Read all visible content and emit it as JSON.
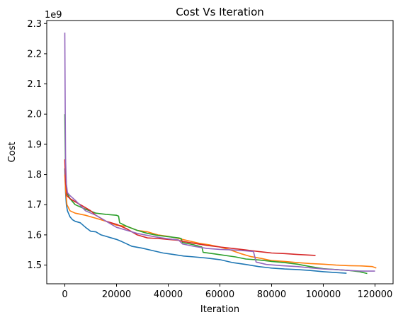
{
  "chart_data": {
    "type": "line",
    "title": "Cost Vs Iteration",
    "xlabel": "Iteration",
    "ylabel": "Cost",
    "y_offset_text": "1e9",
    "xlim": [
      -7000,
      127000
    ],
    "ylim": [
      1.438,
      2.31
    ],
    "xticks": [
      0,
      20000,
      40000,
      60000,
      80000,
      100000,
      120000
    ],
    "yticks": [
      1.5,
      1.6,
      1.7,
      1.8,
      1.9,
      2.0,
      2.1,
      2.2,
      2.3
    ],
    "xtick_labels": [
      "0",
      "20000",
      "40000",
      "60000",
      "80000",
      "100000",
      "120000"
    ],
    "ytick_labels": [
      "1.5",
      "1.6",
      "1.7",
      "1.8",
      "1.9",
      "2.0",
      "2.1",
      "2.2",
      "2.3"
    ],
    "grid": false,
    "legend": "none",
    "series": [
      {
        "color": "#1f77b4",
        "points": [
          [
            0,
            1.82
          ],
          [
            300,
            1.74
          ],
          [
            600,
            1.7
          ],
          [
            1000,
            1.68
          ],
          [
            2000,
            1.66
          ],
          [
            3000,
            1.65
          ],
          [
            4000,
            1.645
          ],
          [
            6000,
            1.64
          ],
          [
            8000,
            1.625
          ],
          [
            10000,
            1.612
          ],
          [
            12000,
            1.61
          ],
          [
            14000,
            1.6
          ],
          [
            16000,
            1.595
          ],
          [
            18000,
            1.59
          ],
          [
            20000,
            1.585
          ],
          [
            22000,
            1.578
          ],
          [
            24000,
            1.57
          ],
          [
            26000,
            1.562
          ],
          [
            30000,
            1.556
          ],
          [
            34000,
            1.548
          ],
          [
            38000,
            1.54
          ],
          [
            42000,
            1.535
          ],
          [
            46000,
            1.53
          ],
          [
            50000,
            1.527
          ],
          [
            55000,
            1.523
          ],
          [
            60000,
            1.518
          ],
          [
            65000,
            1.508
          ],
          [
            70000,
            1.502
          ],
          [
            75000,
            1.495
          ],
          [
            80000,
            1.49
          ],
          [
            85000,
            1.487
          ],
          [
            90000,
            1.485
          ],
          [
            95000,
            1.482
          ],
          [
            100000,
            1.478
          ],
          [
            105000,
            1.475
          ],
          [
            109000,
            1.473
          ]
        ]
      },
      {
        "color": "#ff7f0e",
        "points": [
          [
            0,
            1.8
          ],
          [
            300,
            1.75
          ],
          [
            800,
            1.7
          ],
          [
            2000,
            1.68
          ],
          [
            4000,
            1.672
          ],
          [
            8000,
            1.665
          ],
          [
            12000,
            1.655
          ],
          [
            16000,
            1.645
          ],
          [
            20000,
            1.632
          ],
          [
            24000,
            1.628
          ],
          [
            28000,
            1.615
          ],
          [
            32000,
            1.61
          ],
          [
            36000,
            1.6
          ],
          [
            40000,
            1.595
          ],
          [
            44000,
            1.588
          ],
          [
            48000,
            1.58
          ],
          [
            52000,
            1.572
          ],
          [
            56000,
            1.567
          ],
          [
            60000,
            1.56
          ],
          [
            64000,
            1.55
          ],
          [
            68000,
            1.538
          ],
          [
            72000,
            1.528
          ],
          [
            76000,
            1.522
          ],
          [
            80000,
            1.515
          ],
          [
            85000,
            1.512
          ],
          [
            90000,
            1.508
          ],
          [
            95000,
            1.505
          ],
          [
            100000,
            1.503
          ],
          [
            105000,
            1.5
          ],
          [
            110000,
            1.498
          ],
          [
            115000,
            1.497
          ],
          [
            119000,
            1.495
          ],
          [
            120500,
            1.49
          ]
        ]
      },
      {
        "color": "#2ca02c",
        "points": [
          [
            0,
            2.0
          ],
          [
            300,
            1.8
          ],
          [
            800,
            1.74
          ],
          [
            2000,
            1.72
          ],
          [
            4000,
            1.7
          ],
          [
            8000,
            1.685
          ],
          [
            12000,
            1.672
          ],
          [
            16000,
            1.668
          ],
          [
            20000,
            1.665
          ],
          [
            20800,
            1.662
          ],
          [
            21200,
            1.64
          ],
          [
            24000,
            1.628
          ],
          [
            28000,
            1.615
          ],
          [
            32000,
            1.605
          ],
          [
            36000,
            1.598
          ],
          [
            40000,
            1.594
          ],
          [
            44000,
            1.59
          ],
          [
            45000,
            1.588
          ],
          [
            45500,
            1.575
          ],
          [
            50000,
            1.567
          ],
          [
            53000,
            1.56
          ],
          [
            53500,
            1.542
          ],
          [
            58000,
            1.537
          ],
          [
            62000,
            1.532
          ],
          [
            66000,
            1.527
          ],
          [
            70000,
            1.52
          ],
          [
            75000,
            1.517
          ],
          [
            80000,
            1.512
          ],
          [
            85000,
            1.508
          ],
          [
            90000,
            1.503
          ],
          [
            95000,
            1.495
          ],
          [
            100000,
            1.488
          ],
          [
            105000,
            1.485
          ],
          [
            110000,
            1.482
          ],
          [
            114000,
            1.478
          ],
          [
            117000,
            1.472
          ]
        ]
      },
      {
        "color": "#d62728",
        "points": [
          [
            0,
            1.85
          ],
          [
            300,
            1.78
          ],
          [
            800,
            1.73
          ],
          [
            2000,
            1.72
          ],
          [
            4000,
            1.71
          ],
          [
            6000,
            1.7
          ],
          [
            8000,
            1.69
          ],
          [
            10000,
            1.68
          ],
          [
            12000,
            1.665
          ],
          [
            14000,
            1.655
          ],
          [
            16000,
            1.645
          ],
          [
            20000,
            1.635
          ],
          [
            24000,
            1.62
          ],
          [
            28000,
            1.6
          ],
          [
            32000,
            1.59
          ],
          [
            36000,
            1.588
          ],
          [
            40000,
            1.585
          ],
          [
            44000,
            1.582
          ],
          [
            46000,
            1.578
          ],
          [
            50000,
            1.572
          ],
          [
            55000,
            1.565
          ],
          [
            60000,
            1.56
          ],
          [
            65000,
            1.555
          ],
          [
            70000,
            1.55
          ],
          [
            75000,
            1.545
          ],
          [
            80000,
            1.54
          ],
          [
            85000,
            1.538
          ],
          [
            90000,
            1.535
          ],
          [
            97000,
            1.532
          ]
        ]
      },
      {
        "color": "#9467bd",
        "points": [
          [
            0,
            2.27
          ],
          [
            150,
            2.0
          ],
          [
            300,
            1.85
          ],
          [
            600,
            1.77
          ],
          [
            1000,
            1.74
          ],
          [
            2000,
            1.73
          ],
          [
            4000,
            1.715
          ],
          [
            8000,
            1.68
          ],
          [
            12000,
            1.665
          ],
          [
            16000,
            1.645
          ],
          [
            20000,
            1.625
          ],
          [
            24000,
            1.615
          ],
          [
            28000,
            1.605
          ],
          [
            32000,
            1.598
          ],
          [
            36000,
            1.592
          ],
          [
            40000,
            1.587
          ],
          [
            44000,
            1.583
          ],
          [
            45500,
            1.57
          ],
          [
            50000,
            1.562
          ],
          [
            55000,
            1.555
          ],
          [
            60000,
            1.552
          ],
          [
            65000,
            1.55
          ],
          [
            70000,
            1.547
          ],
          [
            73000,
            1.545
          ],
          [
            74000,
            1.51
          ],
          [
            78000,
            1.502
          ],
          [
            84000,
            1.498
          ],
          [
            90000,
            1.495
          ],
          [
            96000,
            1.49
          ],
          [
            100000,
            1.487
          ],
          [
            105000,
            1.485
          ],
          [
            110000,
            1.482
          ],
          [
            115000,
            1.48
          ],
          [
            120000,
            1.48
          ]
        ]
      }
    ]
  }
}
